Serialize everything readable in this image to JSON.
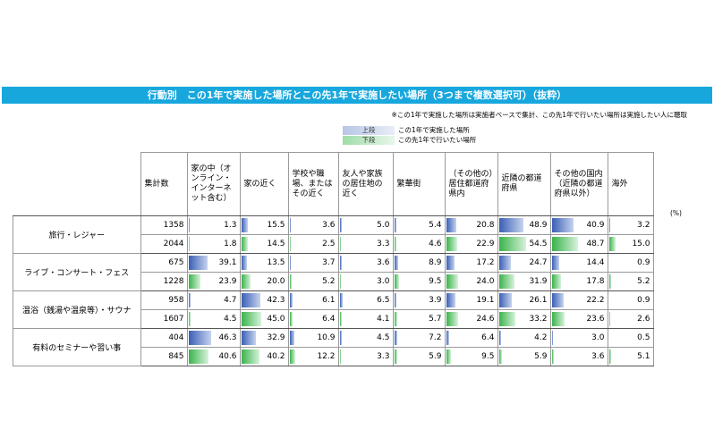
{
  "title": "行動別　この1年で実施した場所とこの先1年で実施したい場所（3つまで複数選択可）（抜粋）",
  "note": "※この1年で実施した場所は実施者ベースで集計、この先1年で行いたい場所は実施したい人に聴取",
  "legend": {
    "upper_tag": "上段",
    "upper_text": "この1年で実施した場所",
    "lower_tag": "下段",
    "lower_text": "この先1年で行いたい場所"
  },
  "unit": "(%)",
  "colors": {
    "title_bg": "#17a7dd",
    "upper_bar": "#3a5fb5",
    "lower_bar": "#3ab34a"
  },
  "chart_data": {
    "type": "table",
    "count_header": "集計数",
    "columns": [
      "家の中（オンライン・インターネット含む）",
      "家の近く",
      "学校や職場、またはその近く",
      "友人や家族の居住地の近く",
      "繁華街",
      "（その他の）居住都道府県内",
      "近隣の都道府県",
      "その他の国内（近隣の都道府県以外）",
      "海外"
    ],
    "rows": [
      {
        "category": "旅行・レジャー",
        "upper": {
          "n": "1358",
          "values": [
            "1.3",
            "15.5",
            "3.6",
            "5.0",
            "5.4",
            "20.8",
            "48.9",
            "40.9",
            "3.2"
          ]
        },
        "lower": {
          "n": "2044",
          "values": [
            "1.8",
            "14.5",
            "2.5",
            "3.3",
            "4.6",
            "22.9",
            "54.5",
            "48.7",
            "15.0"
          ]
        }
      },
      {
        "category": "ライブ・コンサート・フェス",
        "upper": {
          "n": "675",
          "values": [
            "39.1",
            "13.5",
            "3.7",
            "3.6",
            "8.9",
            "17.2",
            "24.7",
            "14.4",
            "0.9"
          ]
        },
        "lower": {
          "n": "1228",
          "values": [
            "23.9",
            "20.0",
            "5.2",
            "3.0",
            "9.5",
            "24.0",
            "31.9",
            "17.8",
            "5.2"
          ]
        }
      },
      {
        "category": "温浴（銭湯や温泉等）・サウナ",
        "upper": {
          "n": "958",
          "values": [
            "4.7",
            "42.3",
            "6.1",
            "6.5",
            "3.9",
            "19.1",
            "26.1",
            "22.2",
            "0.9"
          ]
        },
        "lower": {
          "n": "1607",
          "values": [
            "4.5",
            "45.0",
            "6.4",
            "4.1",
            "5.7",
            "24.6",
            "33.2",
            "23.6",
            "2.6"
          ]
        }
      },
      {
        "category": "有料のセミナーや習い事",
        "upper": {
          "n": "404",
          "values": [
            "46.3",
            "32.9",
            "10.9",
            "4.5",
            "7.2",
            "6.4",
            "4.2",
            "3.0",
            "0.5"
          ]
        },
        "lower": {
          "n": "845",
          "values": [
            "40.6",
            "40.2",
            "12.2",
            "3.3",
            "5.9",
            "9.5",
            "5.9",
            "3.6",
            "5.1"
          ]
        }
      }
    ],
    "scale_max": 100
  }
}
